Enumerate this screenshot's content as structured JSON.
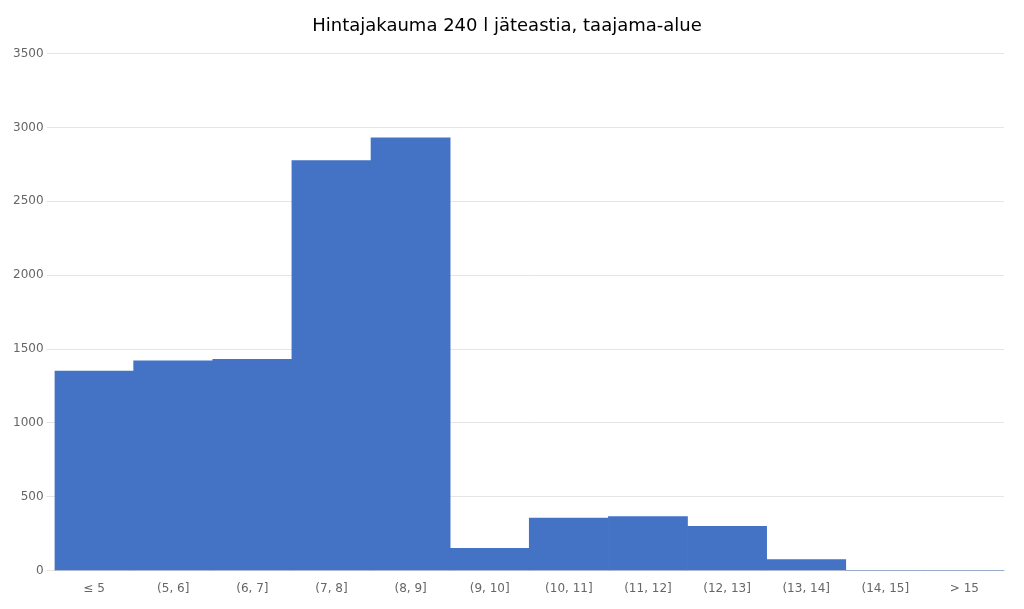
{
  "chart_data": {
    "type": "bar",
    "title": "Hintajakauma 240 l jäteastia, taajama-alue",
    "categories": [
      "≤ 5",
      "(5, 6]",
      "(6, 7]",
      "(7, 8]",
      "(8, 9]",
      "(9, 10]",
      "(10, 11]",
      "(11, 12]",
      "(12, 13]",
      "(13, 14]",
      "(14, 15]",
      "> 15"
    ],
    "values": [
      1350,
      1420,
      1430,
      2775,
      2930,
      150,
      355,
      365,
      300,
      75,
      0,
      0
    ],
    "color": "#4472C4",
    "ylim": [
      0,
      3500
    ],
    "yticks": [
      0,
      500,
      1000,
      1500,
      2000,
      2500,
      3000,
      3500
    ],
    "grid": true
  }
}
